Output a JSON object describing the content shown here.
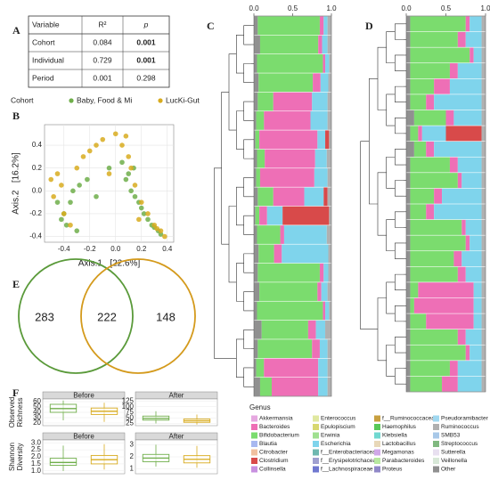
{
  "panel_labels": [
    "A",
    "B",
    "C",
    "D",
    "E",
    "F"
  ],
  "table": {
    "header": [
      "Variable",
      "R²",
      "p"
    ],
    "rows": [
      [
        "Cohort",
        0.084,
        0.001
      ],
      [
        "Individual",
        0.729,
        0.001
      ],
      [
        "Period",
        0.001,
        0.298
      ]
    ]
  },
  "chart_data": [
    {
      "type": "scatter",
      "legend_title": "Cohort",
      "xlabel": "Axis.1   [22.6%]",
      "ylabel": "Axis.2   [16.2%]",
      "xlim": [
        -0.55,
        0.45
      ],
      "ylim": [
        -0.45,
        0.58
      ],
      "xticks": [
        -0.4,
        -0.2,
        {
          "value": 0,
          "label": "0.0"
        },
        0.2,
        0.4
      ],
      "yticks": [
        -0.4,
        -0.2,
        {
          "value": 0,
          "label": "0.0"
        },
        0.2,
        0.4
      ],
      "grid": true,
      "series": [
        {
          "name": "Baby, Food & Mi",
          "color": "#6fae4a",
          "x": [
            -0.45,
            -0.42,
            -0.38,
            -0.35,
            -0.3,
            -0.28,
            -0.22,
            -0.15,
            -0.05,
            0.05,
            0.08,
            0.1,
            0.12,
            0.15,
            0.18,
            0.2,
            0.22,
            0.25,
            0.28,
            0.3,
            0.33,
            0.35,
            -0.4,
            -0.33,
            0.14
          ],
          "values": [
            -0.1,
            -0.25,
            -0.3,
            -0.1,
            -0.35,
            0.05,
            0.1,
            -0.05,
            0.2,
            0.25,
            0.1,
            0.15,
            0,
            -0.05,
            -0.1,
            -0.15,
            -0.2,
            -0.25,
            -0.3,
            -0.32,
            -0.35,
            -0.38,
            -0.2,
            0,
            0.2
          ]
        },
        {
          "name": "LucKi-Gut",
          "color": "#d8ab1e",
          "x": [
            -0.5,
            -0.48,
            -0.45,
            -0.4,
            -0.35,
            -0.3,
            -0.25,
            -0.2,
            -0.1,
            0,
            0.05,
            0.1,
            0.12,
            0.15,
            0.2,
            0.25,
            0.3,
            0.35,
            0.38,
            -0.42,
            -0.15,
            0.08,
            0.18,
            0.32,
            -0.05
          ],
          "values": [
            0.1,
            -0.05,
            0.15,
            -0.2,
            -0.3,
            0.2,
            0.3,
            0.35,
            0.45,
            0.5,
            0.4,
            0.3,
            0.2,
            0.05,
            -0.1,
            -0.2,
            -0.3,
            -0.35,
            -0.4,
            0.05,
            0.4,
            0.48,
            -0.25,
            -0.33,
            0.15
          ]
        }
      ]
    },
    {
      "type": "stacked_bar",
      "xlim": [
        0,
        1
      ],
      "xticks": [
        {
          "value": 0,
          "label": "0.0"
        },
        {
          "value": 0.5,
          "label": "0.5"
        },
        {
          "value": 1,
          "label": "1.0"
        }
      ],
      "series": [
        {
          "name": "Other",
          "values": [
            0.05,
            0.08,
            0.04,
            0.06,
            0.05,
            0.03,
            0.02,
            0.04,
            0.03,
            0.05,
            0.02,
            0.04,
            0.06,
            0.05,
            0.07,
            0.04,
            0.1,
            0.05,
            0.03,
            0.08
          ]
        },
        {
          "name": "Bifidobacterium",
          "values": [
            0.8,
            0.75,
            0.85,
            0.7,
            0.2,
            0.1,
            0.05,
            0.1,
            0.05,
            0.2,
            0.05,
            0.3,
            0.2,
            0.8,
            0.75,
            0.85,
            0.6,
            0.7,
            0.1,
            0.15
          ]
        },
        {
          "name": "Bacteroides",
          "values": [
            0.05,
            0.05,
            0.03,
            0.1,
            0.5,
            0.6,
            0.75,
            0.65,
            0.7,
            0.4,
            0.1,
            0.05,
            0.1,
            0.05,
            0.05,
            0.03,
            0.1,
            0.1,
            0.7,
            0.6
          ]
        },
        {
          "name": "Escherichia",
          "values": [
            0.05,
            0.07,
            0.05,
            0.1,
            0.2,
            0.22,
            0.1,
            0.15,
            0.17,
            0.25,
            0.2,
            0.55,
            0.6,
            0.06,
            0.08,
            0.05,
            0.12,
            0.1,
            0.12,
            0.12
          ]
        },
        {
          "name": "Clostridium",
          "values": [
            0,
            0,
            0,
            0,
            0,
            0,
            0.05,
            0,
            0,
            0.05,
            0.6,
            0,
            0,
            0,
            0,
            0,
            0,
            0,
            0,
            0
          ]
        },
        {
          "name": "Ruminococcus",
          "values": [
            0.05,
            0.05,
            0.03,
            0.04,
            0.05,
            0.05,
            0.03,
            0.06,
            0.05,
            0.05,
            0.03,
            0.06,
            0.04,
            0.04,
            0.05,
            0.03,
            0.08,
            0.05,
            0.05,
            0.05
          ]
        }
      ]
    },
    {
      "type": "stacked_bar",
      "xlim": [
        0,
        1
      ],
      "xticks": [
        {
          "value": 0,
          "label": "0.0"
        },
        {
          "value": 0.5,
          "label": "0.5"
        },
        {
          "value": 1,
          "label": "1.0"
        }
      ],
      "series": [
        {
          "name": "Other",
          "values": [
            0.05,
            0.05,
            0.05,
            0.05,
            0.05,
            0.05,
            0.1,
            0.05,
            0.1,
            0.05,
            0.05,
            0.05,
            0.05,
            0.05,
            0.05,
            0.05,
            0.05,
            0.05,
            0.05,
            0.05,
            0.05,
            0.05,
            0.05,
            0.05
          ]
        },
        {
          "name": "Bifidobacterium",
          "values": [
            0.7,
            0.6,
            0.75,
            0.5,
            0.3,
            0.2,
            0.4,
            0.1,
            0.15,
            0.5,
            0.6,
            0.3,
            0.2,
            0.65,
            0.7,
            0.55,
            0.6,
            0.1,
            0.05,
            0.2,
            0.6,
            0.7,
            0.5,
            0.4
          ]
        },
        {
          "name": "Bacteroides",
          "values": [
            0.05,
            0.1,
            0.05,
            0.1,
            0.2,
            0.1,
            0.1,
            0.05,
            0.1,
            0.1,
            0.05,
            0.1,
            0.1,
            0.05,
            0.05,
            0.1,
            0.1,
            0.7,
            0.75,
            0.6,
            0.1,
            0.05,
            0.1,
            0.2
          ]
        },
        {
          "name": "Escherichia",
          "values": [
            0.15,
            0.2,
            0.1,
            0.3,
            0.4,
            0.6,
            0.35,
            0.3,
            0.6,
            0.3,
            0.25,
            0.5,
            0.6,
            0.2,
            0.15,
            0.25,
            0.2,
            0.1,
            0.1,
            0.1,
            0.2,
            0.15,
            0.3,
            0.3
          ]
        },
        {
          "name": "Clostridium",
          "values": [
            0,
            0,
            0,
            0,
            0,
            0,
            0,
            0.45,
            0,
            0,
            0,
            0,
            0,
            0,
            0,
            0,
            0,
            0,
            0,
            0,
            0,
            0,
            0,
            0
          ]
        },
        {
          "name": "Ruminococcus",
          "values": [
            0.05,
            0.05,
            0.05,
            0.05,
            0.05,
            0.05,
            0.05,
            0.05,
            0.05,
            0.05,
            0.05,
            0.05,
            0.05,
            0.05,
            0.05,
            0.05,
            0.05,
            0.05,
            0.05,
            0.05,
            0.05,
            0.05,
            0.05,
            0.05
          ]
        }
      ]
    },
    {
      "type": "box",
      "rows": [
        {
          "ylabel": [
            "Observed",
            "Richness"
          ],
          "panels": [
            {
              "strip": "Before",
              "ylim": [
                15,
                65
              ],
              "yticks": [
                20,
                30,
                40,
                50,
                60
              ],
              "boxes": [
                {
                  "color": "#6fae4a",
                  "min": 25,
                  "q1": 40,
                  "median": 47,
                  "q3": 55,
                  "max": 62
                },
                {
                  "color": "#d8ab1e",
                  "min": 22,
                  "q1": 36,
                  "median": 42,
                  "q3": 48,
                  "max": 58
                }
              ]
            },
            {
              "strip": "After",
              "ylim": [
                15,
                135
              ],
              "yticks": [
                25,
                50,
                75,
                100,
                125
              ],
              "boxes": [
                {
                  "color": "#6fae4a",
                  "min": 25,
                  "q1": 40,
                  "median": 48,
                  "q3": 58,
                  "max": 80
                },
                {
                  "color": "#d8ab1e",
                  "min": 20,
                  "q1": 30,
                  "median": 37,
                  "q3": 45,
                  "max": 65
                }
              ]
            }
          ]
        },
        {
          "ylabel": [
            "Shannon",
            "Diversity"
          ],
          "panels": [
            {
              "strip": "Before",
              "ylim": [
                0.8,
                3.2
              ],
              "yticks": [
                {
                  "value": 1,
                  "label": "1.0"
                },
                1.5,
                {
                  "value": 2,
                  "label": "2.0"
                },
                2.5,
                {
                  "value": 3,
                  "label": "3.0"
                }
              ],
              "boxes": [
                {
                  "color": "#6fae4a",
                  "min": 1,
                  "q1": 1.4,
                  "median": 1.6,
                  "q3": 1.9,
                  "max": 2.8
                },
                {
                  "color": "#d8ab1e",
                  "min": 1.1,
                  "q1": 1.5,
                  "median": 1.8,
                  "q3": 2.1,
                  "max": 2.9
                }
              ]
            },
            {
              "strip": "After",
              "ylim": [
                0.6,
                3.4
              ],
              "yticks": [
                1,
                2,
                3
              ],
              "boxes": [
                {
                  "color": "#6fae4a",
                  "min": 1.2,
                  "q1": 1.6,
                  "median": 1.9,
                  "q3": 2.2,
                  "max": 3
                },
                {
                  "color": "#d8ab1e",
                  "min": 1.1,
                  "q1": 1.5,
                  "median": 1.8,
                  "q3": 2.1,
                  "max": 2.9
                }
              ]
            }
          ]
        }
      ]
    }
  ],
  "venn": {
    "values": [
      283,
      222,
      148
    ],
    "colors": [
      "#5a9a3a",
      "#d49a1c"
    ]
  },
  "genus_legend": {
    "title": "Genus",
    "items": [
      {
        "name": "Akkermansia",
        "color": "#e6a8e0"
      },
      {
        "name": "Bacteroides",
        "color": "#ee6fb6"
      },
      {
        "name": "Bifidobacterium",
        "color": "#7bdc6e"
      },
      {
        "name": "Blautia",
        "color": "#a8b8f0"
      },
      {
        "name": "Citrobacter",
        "color": "#f0c0a0"
      },
      {
        "name": "Clostridium",
        "color": "#d84a4a"
      },
      {
        "name": "Collinsella",
        "color": "#c890e0"
      },
      {
        "name": "Enterococcus",
        "color": "#e0e8a0"
      },
      {
        "name": "Epulopiscium",
        "color": "#d8d870"
      },
      {
        "name": "Erwinia",
        "color": "#a0e090"
      },
      {
        "name": "Escherichia",
        "color": "#7fd4ec"
      },
      {
        "name": "f__Enterobacteriaceae",
        "color": "#70b8b0"
      },
      {
        "name": "f__Erysipelotrichaceae",
        "color": "#a0a0d0"
      },
      {
        "name": "f__Lachnospiraceae",
        "color": "#7078d0"
      },
      {
        "name": "f__Ruminococcaceae",
        "color": "#c8a040"
      },
      {
        "name": "Haemophilus",
        "color": "#58c858"
      },
      {
        "name": "Klebsiella",
        "color": "#70d8d0"
      },
      {
        "name": "Lactobacillus",
        "color": "#e8d8b8"
      },
      {
        "name": "Megamonas",
        "color": "#d0a8e8"
      },
      {
        "name": "Parabacteroides",
        "color": "#b8e8a0"
      },
      {
        "name": "Proteus",
        "color": "#9088c8"
      },
      {
        "name": "Pseudoramibacter",
        "color": "#a0d8f0"
      },
      {
        "name": "Ruminococcus",
        "color": "#b0b0b0"
      },
      {
        "name": "SMB53",
        "color": "#a8c8e8"
      },
      {
        "name": "Streptococcus",
        "color": "#80b880"
      },
      {
        "name": "Sutterella",
        "color": "#e8e0f0"
      },
      {
        "name": "Veillonella",
        "color": "#d8e8d8"
      },
      {
        "name": "Other",
        "color": "#909090"
      }
    ]
  }
}
